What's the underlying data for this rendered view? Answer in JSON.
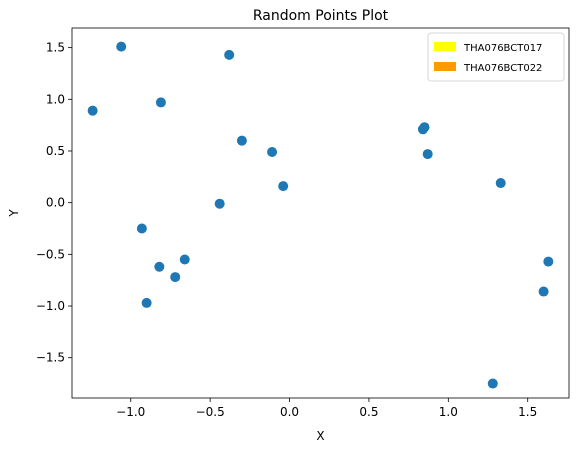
{
  "chart_data": {
    "type": "scatter",
    "title": "Random Points Plot",
    "xlabel": "X",
    "ylabel": "Y",
    "xlim": [
      -1.37,
      1.76
    ],
    "ylim": [
      -1.89,
      1.69
    ],
    "xticks": [
      -1.0,
      -0.5,
      0.0,
      0.5,
      1.0,
      1.5
    ],
    "xtick_labels": [
      "−1.0",
      "−0.5",
      "0.0",
      "0.5",
      "1.0",
      "1.5"
    ],
    "yticks": [
      -1.5,
      -1.0,
      -0.5,
      0.0,
      0.5,
      1.0,
      1.5
    ],
    "ytick_labels": [
      "−1.5",
      "−1.0",
      "−0.5",
      "0.0",
      "0.5",
      "1.0",
      "1.5"
    ],
    "grid": false,
    "legend_position": "top-right",
    "series": [
      {
        "color": "#1f77b4",
        "points": [
          {
            "x": -1.24,
            "y": 0.89
          },
          {
            "x": -1.06,
            "y": 1.51
          },
          {
            "x": -0.81,
            "y": 0.97
          },
          {
            "x": -0.38,
            "y": 1.43
          },
          {
            "x": -0.3,
            "y": 0.6
          },
          {
            "x": -0.11,
            "y": 0.49
          },
          {
            "x": -0.04,
            "y": 0.16
          },
          {
            "x": -0.44,
            "y": -0.01
          },
          {
            "x": -0.93,
            "y": -0.25
          },
          {
            "x": -0.82,
            "y": -0.62
          },
          {
            "x": -0.66,
            "y": -0.55
          },
          {
            "x": -0.72,
            "y": -0.72
          },
          {
            "x": -0.9,
            "y": -0.97
          },
          {
            "x": 0.85,
            "y": 0.73
          },
          {
            "x": 0.84,
            "y": 0.71
          },
          {
            "x": 0.87,
            "y": 0.47
          },
          {
            "x": 1.33,
            "y": 0.19
          },
          {
            "x": 1.63,
            "y": -0.57
          },
          {
            "x": 1.6,
            "y": -0.86
          },
          {
            "x": 1.28,
            "y": -1.75
          }
        ]
      }
    ],
    "legend": [
      {
        "label": "THA076BCT017",
        "color": "#ffff00"
      },
      {
        "label": "THA076BCT022",
        "color": "#ff9900"
      }
    ]
  }
}
